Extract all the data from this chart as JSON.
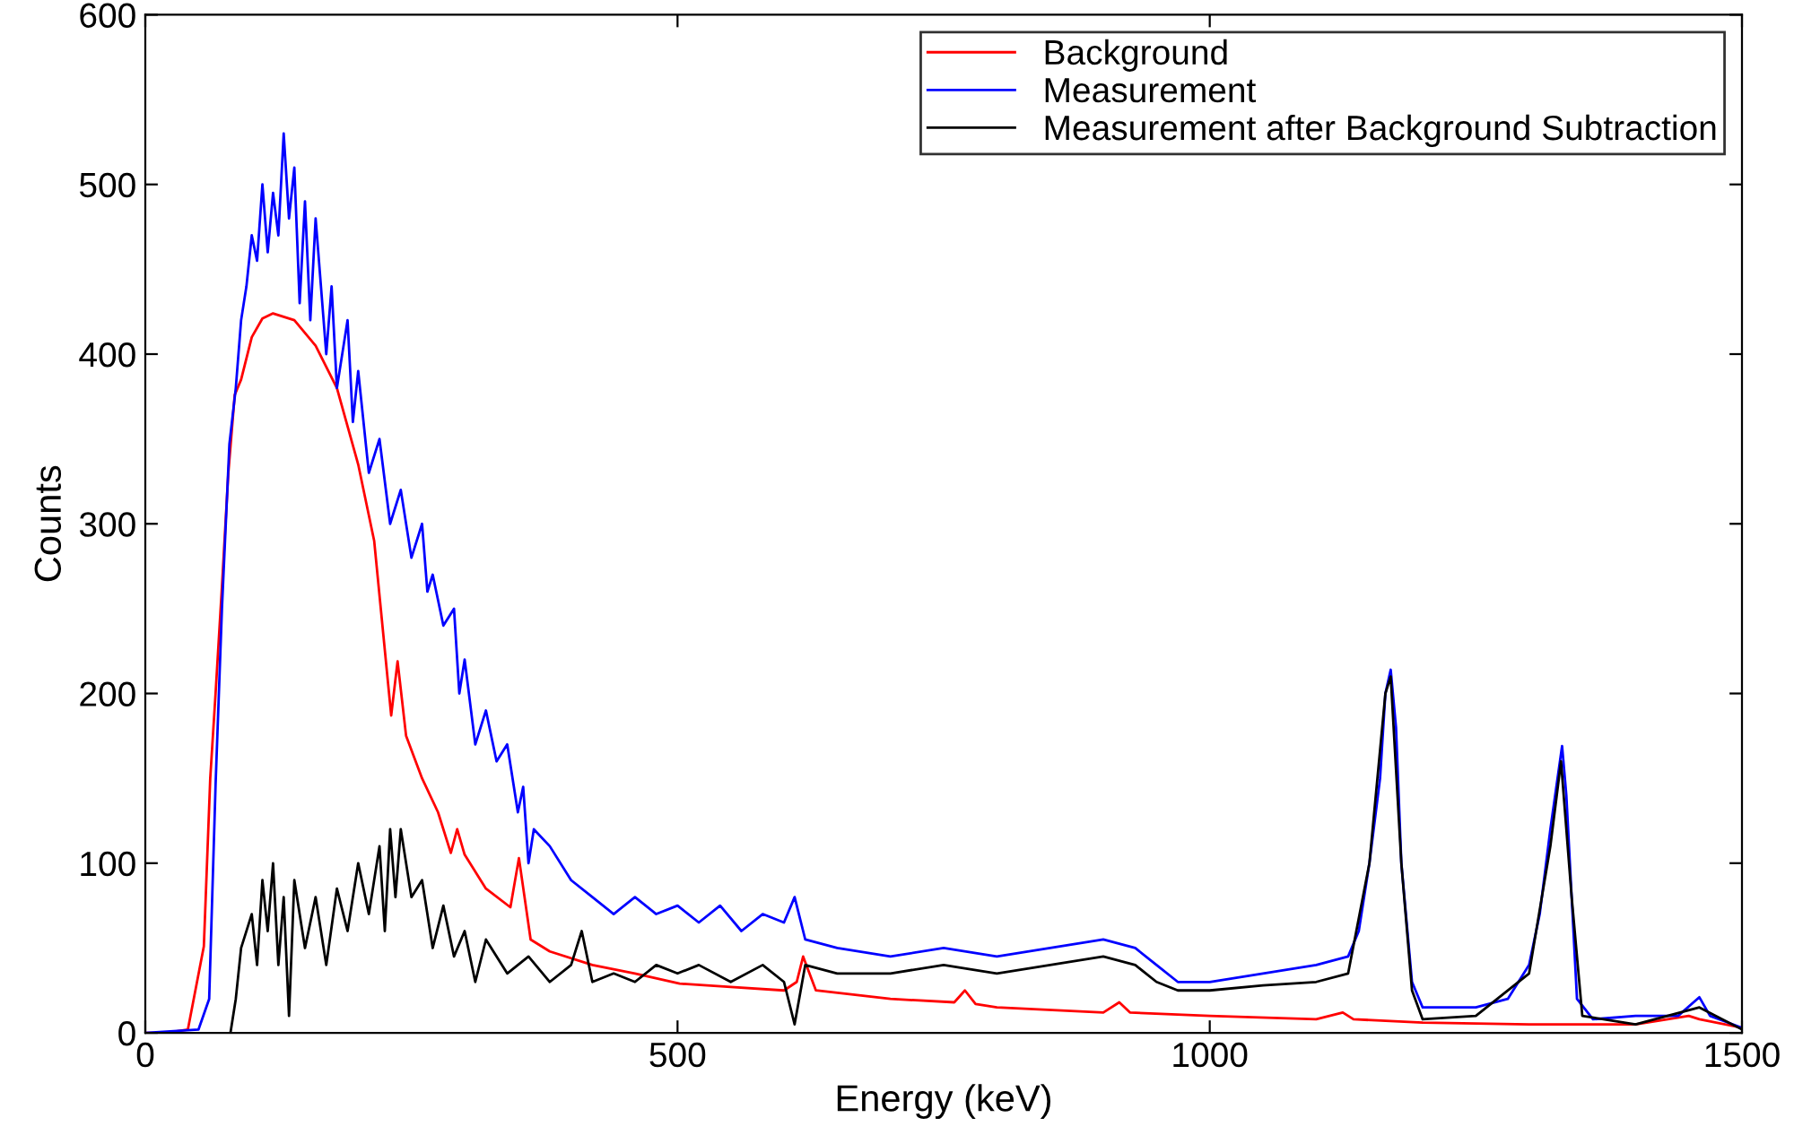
{
  "chart_data": {
    "type": "line",
    "xlabel": "Energy (keV)",
    "ylabel": "Counts",
    "xlim": [
      0,
      1500
    ],
    "ylim": [
      0,
      600
    ],
    "xticks": [
      0,
      500,
      1000,
      1500
    ],
    "yticks": [
      0,
      100,
      200,
      300,
      400,
      500,
      600
    ],
    "grid": false,
    "legend": "top right",
    "marker": "none",
    "line_style": "solid",
    "series": [
      {
        "name": "Background",
        "color": "#ff0000",
        "x": [
          0,
          20,
          40,
          55,
          61,
          66,
          72,
          78,
          84,
          90,
          100,
          110,
          120,
          140,
          160,
          180,
          200,
          215,
          231,
          237,
          245,
          260,
          275,
          287,
          293,
          300,
          320,
          343,
          351,
          362,
          380,
          420,
          460,
          502,
          550,
          600,
          612,
          618,
          630,
          700,
          760,
          770,
          780,
          800,
          900,
          915,
          925,
          1000,
          1100,
          1125,
          1135,
          1200,
          1300,
          1400,
          1450,
          1460,
          1500
        ],
        "values": [
          0,
          0,
          2,
          51,
          150,
          200,
          263,
          330,
          376,
          385,
          410,
          421,
          424,
          420,
          405,
          380,
          335,
          290,
          187,
          219,
          175,
          150,
          130,
          106,
          120,
          105,
          85,
          74,
          103,
          55,
          48,
          40,
          35,
          29,
          27,
          25,
          30,
          45,
          25,
          20,
          18,
          25,
          17,
          15,
          12,
          18,
          12,
          10,
          8,
          12,
          8,
          6,
          5,
          5,
          10,
          8,
          3
        ]
      },
      {
        "name": "Measurement",
        "color": "#0000ff",
        "x": [
          0,
          50,
          60,
          66,
          72,
          79,
          85,
          90,
          95,
          100,
          105,
          110,
          115,
          120,
          125,
          130,
          135,
          140,
          145,
          150,
          155,
          160,
          170,
          175,
          180,
          190,
          195,
          200,
          210,
          220,
          230,
          240,
          250,
          260,
          265,
          270,
          280,
          290,
          295,
          300,
          310,
          320,
          330,
          340,
          350,
          355,
          360,
          365,
          380,
          400,
          420,
          440,
          460,
          480,
          500,
          520,
          540,
          560,
          580,
          600,
          610,
          620,
          650,
          700,
          750,
          800,
          850,
          900,
          930,
          950,
          970,
          1000,
          1050,
          1100,
          1130,
          1140,
          1150,
          1160,
          1165,
          1170,
          1175,
          1180,
          1190,
          1200,
          1250,
          1280,
          1300,
          1310,
          1320,
          1331,
          1335,
          1340,
          1345,
          1360,
          1400,
          1440,
          1460,
          1470,
          1500
        ],
        "values": [
          0,
          2,
          20,
          146,
          250,
          347,
          380,
          420,
          440,
          470,
          455,
          500,
          460,
          495,
          470,
          530,
          480,
          510,
          430,
          490,
          420,
          480,
          400,
          440,
          380,
          420,
          360,
          390,
          330,
          350,
          300,
          320,
          280,
          300,
          260,
          270,
          240,
          250,
          200,
          220,
          170,
          190,
          160,
          170,
          130,
          145,
          100,
          120,
          110,
          90,
          80,
          70,
          80,
          70,
          75,
          65,
          75,
          60,
          70,
          65,
          80,
          55,
          50,
          45,
          50,
          45,
          50,
          55,
          50,
          40,
          30,
          30,
          35,
          40,
          45,
          60,
          100,
          150,
          200,
          214,
          180,
          100,
          30,
          15,
          15,
          20,
          40,
          70,
          120,
          169,
          140,
          80,
          20,
          8,
          10,
          10,
          21,
          10,
          3
        ]
      },
      {
        "name": "Measurement after Background Subtraction",
        "color": "#000000",
        "x": [
          80,
          85,
          90,
          100,
          105,
          110,
          115,
          120,
          125,
          130,
          135,
          140,
          150,
          160,
          170,
          180,
          190,
          200,
          210,
          220,
          225,
          230,
          235,
          240,
          250,
          260,
          270,
          280,
          290,
          300,
          310,
          320,
          340,
          360,
          380,
          400,
          410,
          420,
          440,
          460,
          480,
          500,
          520,
          550,
          580,
          600,
          610,
          620,
          650,
          700,
          750,
          800,
          850,
          900,
          930,
          950,
          970,
          1000,
          1050,
          1100,
          1130,
          1150,
          1165,
          1170,
          1180,
          1190,
          1200,
          1250,
          1300,
          1320,
          1330,
          1340,
          1350,
          1400,
          1460,
          1500
        ],
        "values": [
          0,
          20,
          50,
          70,
          40,
          90,
          60,
          100,
          40,
          80,
          10,
          90,
          50,
          80,
          40,
          85,
          60,
          100,
          70,
          110,
          60,
          120,
          80,
          120,
          80,
          90,
          50,
          75,
          45,
          60,
          30,
          55,
          35,
          45,
          30,
          40,
          60,
          30,
          35,
          30,
          40,
          35,
          40,
          30,
          40,
          30,
          5,
          40,
          35,
          35,
          40,
          35,
          40,
          45,
          40,
          30,
          25,
          25,
          28,
          30,
          35,
          100,
          200,
          210,
          100,
          25,
          8,
          10,
          35,
          110,
          160,
          80,
          10,
          5,
          15,
          2
        ]
      }
    ]
  }
}
